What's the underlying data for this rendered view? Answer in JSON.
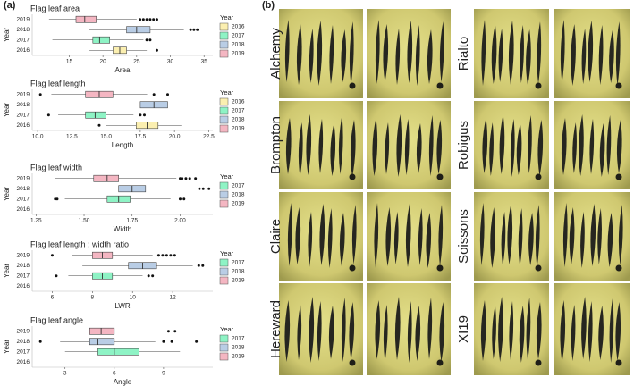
{
  "panels": {
    "a": "(a)",
    "b": "(b)"
  },
  "chart_data": [
    {
      "type": "boxplot",
      "title": "Flag leaf area",
      "xlabel": "Area",
      "ylabel": "Year",
      "categories": [
        "2019",
        "2018",
        "2017",
        "2016"
      ],
      "xlim": [
        9.5,
        36.3
      ],
      "xticks": [
        15,
        20,
        25,
        30,
        35
      ],
      "boxes": [
        {
          "color": "#f4b6c2",
          "min": 12,
          "q1": 16,
          "median": 17.3,
          "q3": 19,
          "max": 25,
          "outliers": [
            25.5,
            26,
            26.5,
            27,
            27.5,
            28
          ]
        },
        {
          "color": "#b9cde5",
          "min": 18,
          "q1": 23.5,
          "median": 25,
          "q3": 27,
          "max": 32,
          "outliers": [
            33,
            33.5,
            34
          ]
        },
        {
          "color": "#8ef3c5",
          "min": 12.5,
          "q1": 18.5,
          "median": 19.5,
          "q3": 21,
          "max": 26,
          "outliers": [
            26.5,
            27
          ]
        },
        {
          "color": "#fbefb0",
          "min": 18,
          "q1": 21.5,
          "median": 22.5,
          "q3": 23.5,
          "max": 26.5,
          "outliers": [
            28
          ]
        }
      ],
      "legend": {
        "title": "Year",
        "entries": [
          {
            "name": "2016",
            "color": "#fbefb0"
          },
          {
            "name": "2017",
            "color": "#8ef3c5"
          },
          {
            "name": "2018",
            "color": "#b9cde5"
          },
          {
            "name": "2019",
            "color": "#f4b6c2"
          }
        ]
      }
    },
    {
      "type": "boxplot",
      "title": "Flag leaf length",
      "xlabel": "Length",
      "ylabel": "Year",
      "categories": [
        "2019",
        "2018",
        "2017",
        "2016"
      ],
      "xlim": [
        9.6,
        22.8
      ],
      "xticks": [
        {
          "value": 10,
          "label": "10.0"
        },
        12.5,
        {
          "value": 15,
          "label": "15.0"
        },
        17.5,
        {
          "value": 20,
          "label": "20.0"
        },
        22.5
      ],
      "boxes": [
        {
          "color": "#f4b6c2",
          "min": 11,
          "q1": 13.5,
          "median": 14.5,
          "q3": 15.5,
          "max": 18,
          "outliers": [
            10.2,
            18.5,
            19.5
          ]
        },
        {
          "color": "#b9cde5",
          "min": 14.5,
          "q1": 17.5,
          "median": 18.5,
          "q3": 19.5,
          "max": 22.5,
          "outliers": []
        },
        {
          "color": "#8ef3c5",
          "min": 11.5,
          "q1": 13.5,
          "median": 14.2,
          "q3": 15,
          "max": 17,
          "outliers": [
            10.8,
            17.5,
            17.8
          ]
        },
        {
          "color": "#fbefb0",
          "min": 15,
          "q1": 17.2,
          "median": 18,
          "q3": 18.8,
          "max": 20.5,
          "outliers": [
            14.5
          ]
        }
      ],
      "legend": {
        "title": "Year",
        "entries": [
          {
            "name": "2016",
            "color": "#fbefb0"
          },
          {
            "name": "2017",
            "color": "#8ef3c5"
          },
          {
            "name": "2018",
            "color": "#b9cde5"
          },
          {
            "name": "2019",
            "color": "#f4b6c2"
          }
        ]
      }
    },
    {
      "type": "boxplot",
      "title": "Flag leaf width",
      "xlabel": "Width",
      "ylabel": "Year",
      "categories": [
        "2019",
        "2018",
        "2017",
        "2016"
      ],
      "xlim": [
        1.23,
        2.17
      ],
      "xticks": [
        1.25,
        {
          "value": 1.5,
          "label": "1.50"
        },
        1.75,
        {
          "value": 2,
          "label": "2.00"
        }
      ],
      "boxes": [
        {
          "color": "#f4b6c2",
          "min": 1.35,
          "q1": 1.55,
          "median": 1.62,
          "q3": 1.68,
          "max": 1.98,
          "outliers": [
            2.0,
            2.01,
            2.03,
            2.05,
            2.08
          ]
        },
        {
          "color": "#b9cde5",
          "min": 1.45,
          "q1": 1.68,
          "median": 1.75,
          "q3": 1.82,
          "max": 2.05,
          "outliers": [
            2.1,
            2.12,
            2.15
          ]
        },
        {
          "color": "#8ef3c5",
          "min": 1.4,
          "q1": 1.62,
          "median": 1.68,
          "q3": 1.74,
          "max": 1.95,
          "outliers": [
            1.35,
            1.36,
            2.0,
            2.02
          ]
        },
        null
      ],
      "legend": {
        "title": "Year",
        "entries": [
          {
            "name": "2017",
            "color": "#8ef3c5"
          },
          {
            "name": "2018",
            "color": "#b9cde5"
          },
          {
            "name": "2019",
            "color": "#f4b6c2"
          }
        ]
      }
    },
    {
      "type": "boxplot",
      "title": "Flag leaf length : width ratio",
      "xlabel": "LWR",
      "ylabel": "Year",
      "categories": [
        "2019",
        "2018",
        "2017",
        "2016"
      ],
      "xlim": [
        5,
        14
      ],
      "xticks": [
        6,
        8,
        10,
        12
      ],
      "boxes": [
        {
          "color": "#f4b6c2",
          "min": 7,
          "q1": 8,
          "median": 8.5,
          "q3": 9,
          "max": 11,
          "outliers": [
            6,
            11.3,
            11.5,
            11.7,
            11.9,
            12.1
          ]
        },
        {
          "color": "#b9cde5",
          "min": 7.5,
          "q1": 9.8,
          "median": 10.5,
          "q3": 11.2,
          "max": 13,
          "outliers": [
            13.3,
            13.5
          ]
        },
        {
          "color": "#8ef3c5",
          "min": 6.8,
          "q1": 8,
          "median": 8.5,
          "q3": 9,
          "max": 10.5,
          "outliers": [
            6.2,
            10.8,
            11
          ]
        },
        null
      ],
      "legend": {
        "title": "Year",
        "entries": [
          {
            "name": "2017",
            "color": "#8ef3c5"
          },
          {
            "name": "2018",
            "color": "#b9cde5"
          },
          {
            "name": "2019",
            "color": "#f4b6c2"
          }
        ]
      }
    },
    {
      "type": "boxplot",
      "title": "Flag leaf angle",
      "xlabel": "Angle",
      "ylabel": "Year",
      "categories": [
        "2019",
        "2018",
        "2017",
        "2016"
      ],
      "xlim": [
        1,
        12
      ],
      "xticks": [
        3,
        6,
        9
      ],
      "boxes": [
        {
          "color": "#f4b6c2",
          "min": 2.5,
          "q1": 4.5,
          "median": 5.2,
          "q3": 6,
          "max": 8.5,
          "outliers": [
            9.3,
            9.7
          ]
        },
        {
          "color": "#b9cde5",
          "min": 2.7,
          "q1": 4.5,
          "median": 5,
          "q3": 6,
          "max": 8.5,
          "outliers": [
            1.5,
            9,
            9.5,
            11
          ]
        },
        {
          "color": "#8ef3c5",
          "min": 3,
          "q1": 5,
          "median": 6,
          "q3": 7.5,
          "max": 10,
          "outliers": []
        },
        null
      ],
      "legend": {
        "title": "Year",
        "entries": [
          {
            "name": "2017",
            "color": "#8ef3c5"
          },
          {
            "name": "2018",
            "color": "#b9cde5"
          },
          {
            "name": "2019",
            "color": "#f4b6c2"
          }
        ]
      }
    }
  ],
  "photos": {
    "left": [
      "Alchemy",
      "Brompton",
      "Claire",
      "Hereward"
    ],
    "right": [
      "Rialto",
      "Robigus",
      "Soissons",
      "XI19"
    ]
  }
}
